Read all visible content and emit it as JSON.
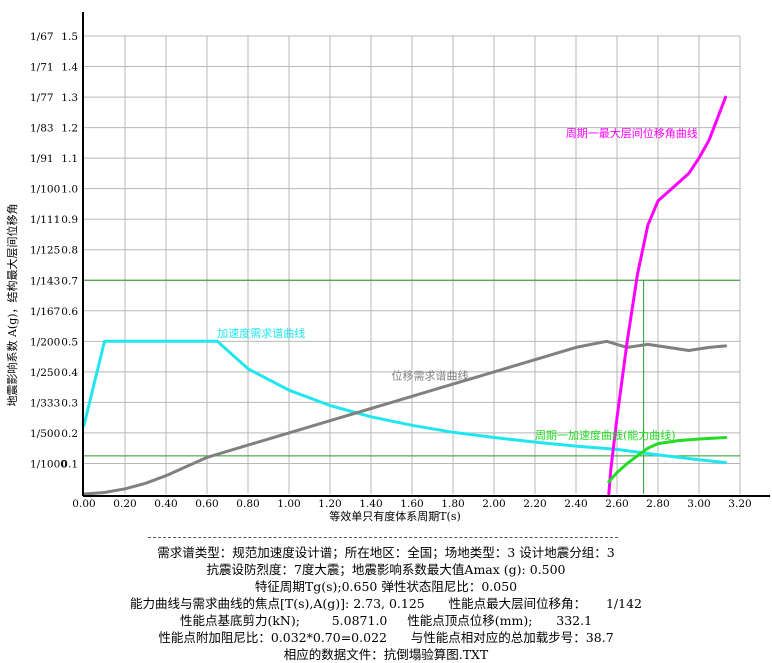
{
  "chart_data": {
    "type": "line",
    "xlabel": "等效单只有度体系周期T(s)",
    "ylabel": "地震影响系数 A(g)，结构最大层间位移角",
    "xlim": [
      0,
      3.2
    ],
    "ylim": [
      0,
      1.5
    ],
    "x_ticks": [
      "0.00",
      "0.20",
      "0.40",
      "0.60",
      "0.80",
      "1.00",
      "1.20",
      "1.40",
      "1.60",
      "1.80",
      "2.00",
      "2.20",
      "2.40",
      "2.60",
      "2.80",
      "3.00",
      "3.20"
    ],
    "y_ticks": [
      "0.1",
      "0.2",
      "0.3",
      "0.4",
      "0.5",
      "0.6",
      "0.7",
      "0.8",
      "0.9",
      "1.0",
      "1.1",
      "1.2",
      "1.3",
      "1.4",
      "1.5"
    ],
    "y_ticks_drift": [
      "1/1000",
      "1/500",
      "1/333",
      "1/250",
      "1/200",
      "1/167",
      "1/143",
      "1/125",
      "1/111",
      "1/100",
      "1/91",
      "1/83",
      "1/77",
      "1/71",
      "1/67"
    ],
    "grid": true,
    "series": [
      {
        "name": "加速度需求谱曲线",
        "color": "#22e6ee",
        "x": [
          0.0,
          0.1,
          0.65,
          0.8,
          1.0,
          1.2,
          1.4,
          1.6,
          1.8,
          2.0,
          2.2,
          2.4,
          2.6,
          2.8,
          3.0,
          3.13
        ],
        "y": [
          0.225,
          0.5,
          0.5,
          0.41,
          0.34,
          0.29,
          0.253,
          0.225,
          0.202,
          0.185,
          0.17,
          0.157,
          0.146,
          0.128,
          0.112,
          0.103
        ]
      },
      {
        "name": "位移需求谱曲线",
        "color": "#808080",
        "x": [
          0.0,
          0.1,
          0.2,
          0.3,
          0.4,
          0.5,
          0.6,
          0.65,
          0.8,
          1.0,
          1.2,
          1.4,
          1.6,
          1.8,
          2.0,
          2.2,
          2.4,
          2.55,
          2.6,
          2.65,
          2.75,
          2.85,
          2.95,
          3.05,
          3.13
        ],
        "y": [
          0.0,
          0.005,
          0.017,
          0.035,
          0.06,
          0.09,
          0.12,
          0.13,
          0.16,
          0.2,
          0.24,
          0.28,
          0.32,
          0.36,
          0.4,
          0.44,
          0.48,
          0.5,
          0.49,
          0.48,
          0.49,
          0.48,
          0.47,
          0.48,
          0.485
        ]
      },
      {
        "name": "周期一最大层间位移角曲线",
        "color": "#ff00ff",
        "x": [
          2.56,
          2.57,
          2.6,
          2.65,
          2.7,
          2.75,
          2.8,
          2.85,
          2.9,
          2.95,
          3.0,
          3.05,
          3.13
        ],
        "y": [
          0.0,
          0.08,
          0.25,
          0.5,
          0.72,
          0.88,
          0.96,
          0.99,
          1.02,
          1.05,
          1.1,
          1.16,
          1.3
        ]
      },
      {
        "name": "周期一加速度曲线(能力曲线)",
        "color": "#22dd22",
        "x": [
          2.56,
          2.6,
          2.65,
          2.7,
          2.75,
          2.8,
          2.9,
          3.0,
          3.13
        ],
        "y": [
          0.04,
          0.07,
          0.1,
          0.125,
          0.15,
          0.165,
          0.175,
          0.18,
          0.185
        ]
      }
    ],
    "reference_lines": [
      {
        "axis": "y",
        "value": 0.7
      },
      {
        "axis": "y",
        "value": 0.125
      },
      {
        "axis": "x",
        "value": 2.73
      }
    ],
    "info_lines": [
      "需求谱类型：规范加速度设计谱；所在地区：全国；场地类型：3 设计地震分组：3",
      "抗震设防烈度：7度大震；地震影响系数最大值Amax (g): 0.500",
      "特征周期Tg(s);0.650 弹性状态阻尼比：0.050",
      "能力曲线与需求曲线的焦点[T(s),A(g)]: 2.73, 0.125      性能点最大层间位移角：     1/142",
      "性能点基底剪力(kN);        5.0871.0     性能点顶点位移(mm);      332.1",
      "性能点附加阻尼比：0.032*0.70=0.022      与性能点相对应的总加载步号：38.7",
      "相应的数据文件：抗倒塌验算图.TXT"
    ]
  }
}
